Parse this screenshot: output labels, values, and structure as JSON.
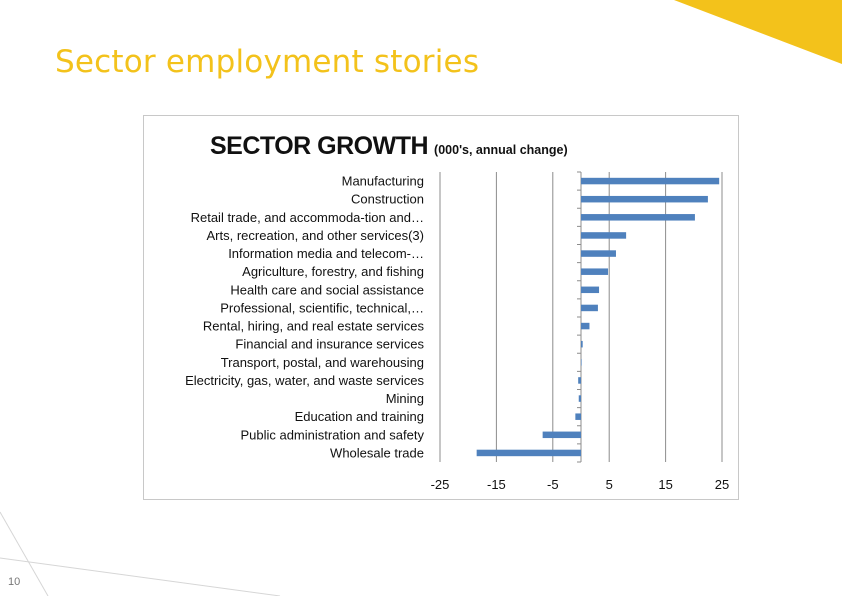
{
  "slide": {
    "title": "Sector employment stories",
    "page_number": "10",
    "accent_color": "#f3c21b"
  },
  "chart_data": {
    "type": "bar",
    "orientation": "horizontal",
    "title": "SECTOR GROWTH",
    "subtitle": "(000's, annual change)",
    "xlim": [
      -25,
      25
    ],
    "xticks": [
      -25,
      -15,
      -5,
      5,
      15,
      25
    ],
    "grid": "vertical",
    "bar_color": "#4f81bd",
    "categories": [
      "Manufacturing",
      "Construction",
      "Retail trade, and accommoda-tion and…",
      "Arts, recreation, and other services(3)",
      "Information media and telecom-…",
      "Agriculture, forestry, and fishing",
      "Health care and social assistance",
      "Professional, scientific, technical,…",
      "Rental, hiring, and real estate services",
      "Financial and insurance services",
      "Transport, postal, and warehousing",
      "Electricity, gas, water, and waste services",
      "Mining",
      "Education and training",
      "Public administration and safety",
      "Wholesale trade"
    ],
    "values": [
      24.5,
      22.5,
      20.2,
      8.0,
      6.2,
      4.8,
      3.2,
      3.0,
      1.5,
      0.3,
      0.0,
      -0.5,
      -0.4,
      -1.0,
      -6.8,
      -18.5
    ]
  }
}
